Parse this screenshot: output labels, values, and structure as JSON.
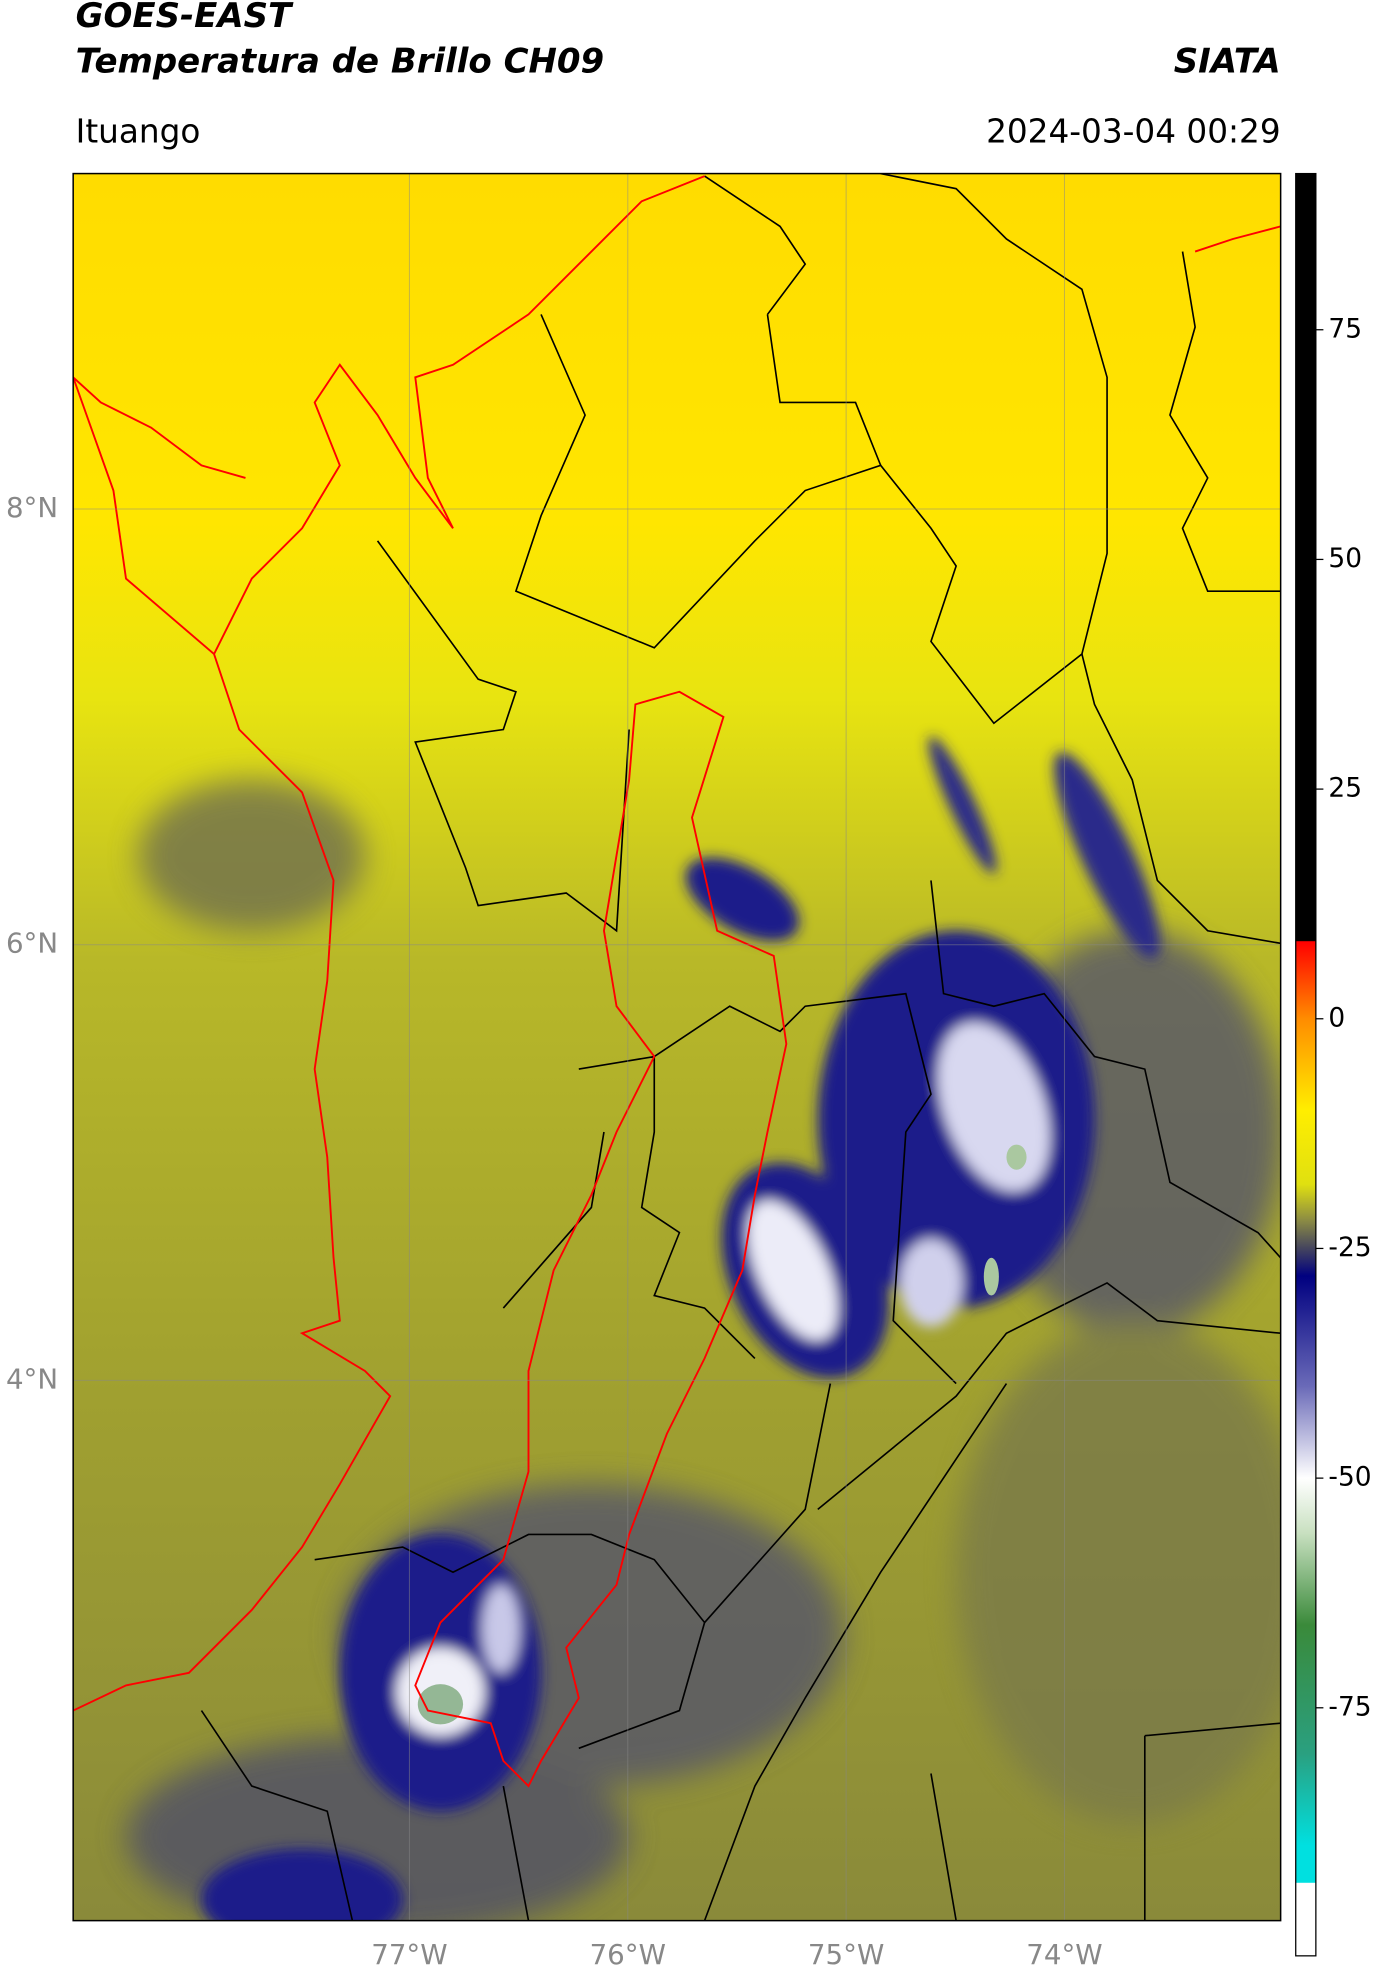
{
  "header": {
    "title": "GOES-EAST",
    "subtitle": "Temperatura de Brillo CH09",
    "source": "SIATA",
    "location": "Ituango",
    "timestamp": "2024-03-04 00:29"
  },
  "map": {
    "lon_lim": [
      -78.54,
      -73.01
    ],
    "lat_lim": [
      1.52,
      9.54
    ],
    "lon_ticks": [
      {
        "value": -77,
        "label": "77°W"
      },
      {
        "value": -76,
        "label": "76°W"
      },
      {
        "value": -75,
        "label": "75°W"
      },
      {
        "value": -74,
        "label": "74°W"
      }
    ],
    "lat_ticks": [
      {
        "value": 8,
        "label": "8°N"
      },
      {
        "value": 6,
        "label": "6°N"
      },
      {
        "value": 4,
        "label": "4°N"
      }
    ]
  },
  "colorbar": {
    "lim": [
      -102,
      92
    ],
    "ticks": [
      75,
      50,
      25,
      0,
      -25,
      -50,
      -75
    ],
    "stops": [
      {
        "value": 92,
        "color": "#000000"
      },
      {
        "value": 8.5,
        "color": "#000000"
      },
      {
        "value": 8.4,
        "color": "#ff0000"
      },
      {
        "value": 0,
        "color": "#ff8c00"
      },
      {
        "value": -10,
        "color": "#ffee00"
      },
      {
        "value": -18,
        "color": "#e0e010"
      },
      {
        "value": -22,
        "color": "#8a8a44"
      },
      {
        "value": -25,
        "color": "#44445e"
      },
      {
        "value": -28,
        "color": "#000080"
      },
      {
        "value": -40,
        "color": "#6a6ab8"
      },
      {
        "value": -50,
        "color": "#ffffff"
      },
      {
        "value": -56,
        "color": "#c8e0c0"
      },
      {
        "value": -66,
        "color": "#3a8a3a"
      },
      {
        "value": -80,
        "color": "#2aa080"
      },
      {
        "value": -90,
        "color": "#00e0e0"
      },
      {
        "value": -94,
        "color": "#00e0e0"
      },
      {
        "value": -94.1,
        "color": "#ffffff"
      },
      {
        "value": -102,
        "color": "#ffffff"
      }
    ]
  }
}
